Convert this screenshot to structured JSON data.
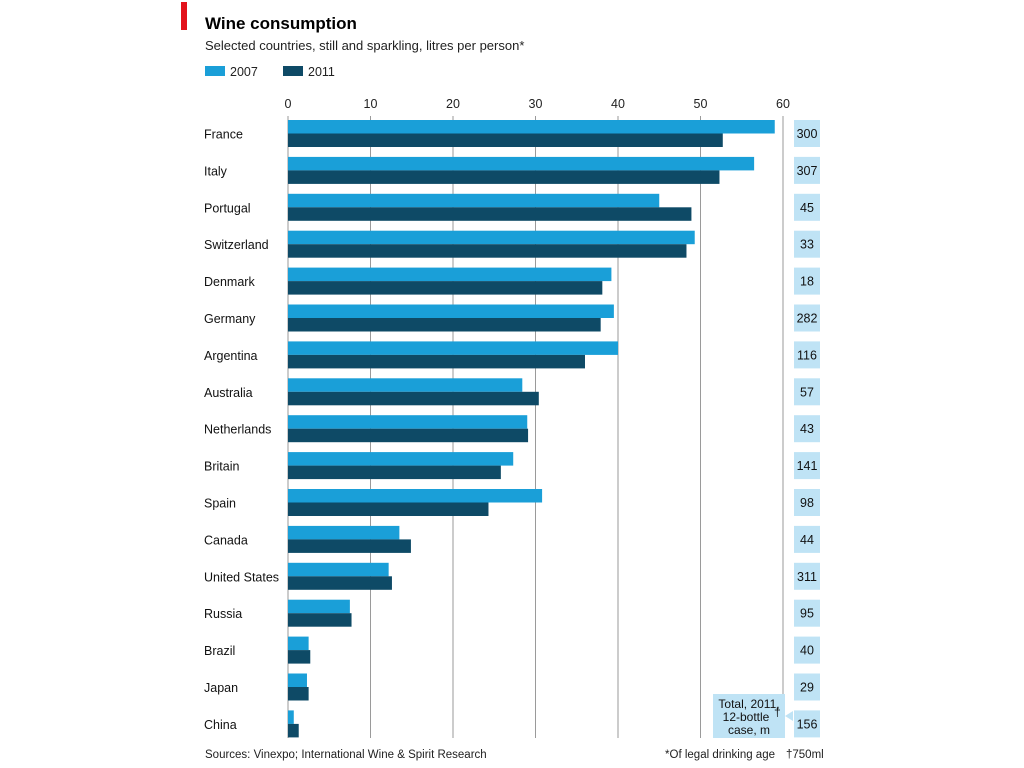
{
  "chart_data": {
    "type": "bar",
    "orientation": "horizontal",
    "title": "Wine consumption",
    "subtitle": "Selected countries, still and sparkling, litres per person*",
    "xlim": [
      0,
      60
    ],
    "x_ticks": [
      "0",
      "10",
      "20",
      "30",
      "40",
      "50",
      "60"
    ],
    "grid": true,
    "legend_position": "top-left",
    "categories": [
      "France",
      "Italy",
      "Portugal",
      "Switzerland",
      "Denmark",
      "Germany",
      "Argentina",
      "Australia",
      "Netherlands",
      "Britain",
      "Spain",
      "Canada",
      "United States",
      "Russia",
      "Brazil",
      "Japan",
      "China"
    ],
    "series": [
      {
        "name": "2007",
        "color": "#1a9fd8",
        "values": [
          59,
          56.5,
          45,
          49.3,
          39.2,
          39.5,
          40,
          28.4,
          29,
          27.3,
          30.8,
          13.5,
          12.2,
          7.5,
          2.5,
          2.3,
          0.7
        ]
      },
      {
        "name": "2011",
        "color": "#0e4a66",
        "values": [
          52.7,
          52.3,
          48.9,
          48.3,
          38.1,
          37.9,
          36,
          30.4,
          29.1,
          25.8,
          24.3,
          14.9,
          12.6,
          7.7,
          2.7,
          2.5,
          1.3
        ]
      }
    ],
    "totals_2011": [
      "300",
      "307",
      "45",
      "33",
      "18",
      "282",
      "116",
      "57",
      "43",
      "141",
      "98",
      "44",
      "311",
      "95",
      "40",
      "29",
      "156"
    ],
    "totals_label": [
      "Total, 2011,",
      "12-bottle",
      "case, m"
    ],
    "totals_label_mark": "†",
    "source": "Sources: Vinexpo; International Wine & Spirit Research",
    "footnote_1": "*Of legal drinking age",
    "footnote_2": "†750ml"
  },
  "colors": {
    "accent": "#e3121b",
    "grid": "#9a9a9a",
    "totals_box": "#bfe3f5"
  }
}
